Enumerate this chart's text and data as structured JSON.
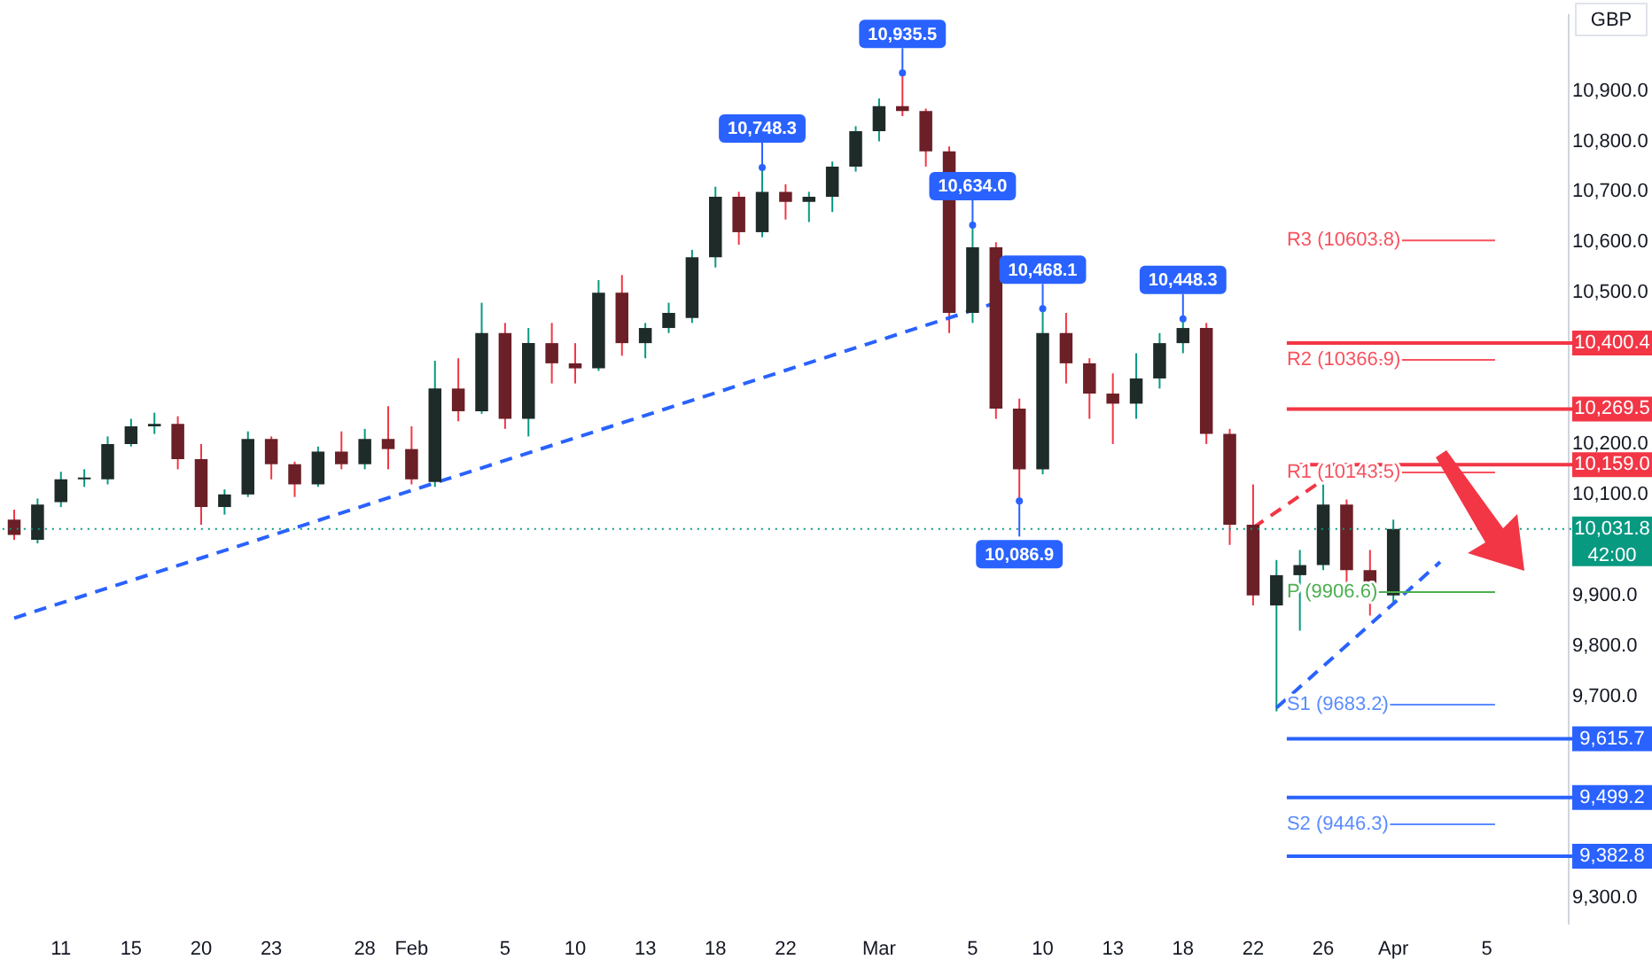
{
  "chart_data": {
    "type": "candlestick",
    "categories": [
      null,
      null,
      "11",
      null,
      null,
      "15",
      null,
      null,
      "20",
      null,
      null,
      "23",
      null,
      null,
      null,
      "28",
      null,
      "Feb",
      null,
      null,
      null,
      "5",
      null,
      null,
      "10",
      null,
      null,
      "13",
      null,
      null,
      "18",
      null,
      null,
      "22",
      null,
      null,
      null,
      "Mar",
      null,
      null,
      null,
      "5",
      null,
      null,
      "10",
      null,
      null,
      "13",
      null,
      null,
      "18",
      null,
      null,
      "22",
      null,
      null,
      "26",
      null,
      null,
      "Apr",
      null,
      null,
      null,
      "5",
      null,
      null,
      null
    ],
    "ohlc": [
      [
        10050,
        10070,
        10010,
        10020
      ],
      [
        10010,
        10092,
        10003,
        10080
      ],
      [
        10085,
        10145,
        10075,
        10130
      ],
      [
        10130,
        10150,
        10115,
        10130
      ],
      [
        10130,
        10215,
        10120,
        10200
      ],
      [
        10200,
        10250,
        10195,
        10235
      ],
      [
        10235,
        10262,
        10220,
        10240
      ],
      [
        10240,
        10255,
        10150,
        10170
      ],
      [
        10170,
        10200,
        10040,
        10075
      ],
      [
        10075,
        10110,
        10060,
        10100
      ],
      [
        10100,
        10225,
        10095,
        10210
      ],
      [
        10210,
        10215,
        10130,
        10160
      ],
      [
        10160,
        10165,
        10095,
        10120
      ],
      [
        10120,
        10195,
        10115,
        10185
      ],
      [
        10185,
        10225,
        10150,
        10160
      ],
      [
        10160,
        10230,
        10150,
        10210
      ],
      [
        10210,
        10275,
        10150,
        10190
      ],
      [
        10190,
        10235,
        10120,
        10130
      ],
      [
        10125,
        10365,
        10115,
        10310
      ],
      [
        10310,
        10370,
        10245,
        10265
      ],
      [
        10265,
        10480,
        10260,
        10420
      ],
      [
        10420,
        10440,
        10230,
        10250
      ],
      [
        10250,
        10430,
        10215,
        10400
      ],
      [
        10400,
        10440,
        10320,
        10360
      ],
      [
        10360,
        10400,
        10320,
        10350
      ],
      [
        10350,
        10525,
        10345,
        10500
      ],
      [
        10500,
        10535,
        10375,
        10400
      ],
      [
        10400,
        10440,
        10370,
        10430
      ],
      [
        10430,
        10480,
        10420,
        10460
      ],
      [
        10450,
        10585,
        10440,
        10570
      ],
      [
        10570,
        10710,
        10550,
        10690
      ],
      [
        10690,
        10700,
        10595,
        10620
      ],
      [
        10620,
        10748.3,
        10610,
        10700
      ],
      [
        10700,
        10715,
        10645,
        10680
      ],
      [
        10680,
        10700,
        10640,
        10690
      ],
      [
        10690,
        10760,
        10660,
        10750
      ],
      [
        10750,
        10830,
        10740,
        10820
      ],
      [
        10820,
        10885,
        10800,
        10870
      ],
      [
        10870,
        10935.5,
        10850,
        10860
      ],
      [
        10860,
        10865,
        10750,
        10780
      ],
      [
        10780,
        10790,
        10420,
        10460
      ],
      [
        10460,
        10634.0,
        10440,
        10590
      ],
      [
        10590,
        10600,
        10250,
        10270
      ],
      [
        10270,
        10290,
        10086.9,
        10150
      ],
      [
        10150,
        10468.1,
        10140,
        10420
      ],
      [
        10420,
        10460,
        10320,
        10360
      ],
      [
        10360,
        10370,
        10250,
        10300
      ],
      [
        10300,
        10340,
        10200,
        10280
      ],
      [
        10280,
        10380,
        10250,
        10330
      ],
      [
        10330,
        10420,
        10310,
        10400
      ],
      [
        10400,
        10448.3,
        10380,
        10430
      ],
      [
        10430,
        10440,
        10200,
        10220
      ],
      [
        10220,
        10230,
        10000,
        10040
      ],
      [
        10040,
        10120,
        9880,
        9900
      ],
      [
        9880,
        9970,
        9670,
        9940
      ],
      [
        9940,
        9990,
        9830,
        9960
      ],
      [
        9960,
        10120,
        9950,
        10080
      ],
      [
        10080,
        10090,
        9920,
        9950
      ],
      [
        9950,
        9990,
        9860,
        9900
      ],
      [
        9900,
        10050,
        9885,
        10031.8
      ],
      null,
      null,
      null,
      null,
      null,
      null,
      null
    ],
    "value_labels": [
      null,
      null,
      null,
      null,
      null,
      null,
      null,
      null,
      null,
      null,
      null,
      null,
      null,
      null,
      null,
      null,
      null,
      null,
      null,
      null,
      null,
      null,
      null,
      null,
      null,
      null,
      null,
      null,
      null,
      null,
      null,
      null,
      "10,748.3",
      null,
      null,
      null,
      null,
      null,
      "10,935.5",
      null,
      null,
      "10,634.0",
      null,
      "10,086.9",
      "10,468.1",
      null,
      null,
      null,
      null,
      null,
      "10,448.3",
      null,
      null,
      null,
      null,
      null,
      null,
      null,
      null,
      null,
      null,
      null,
      null,
      null,
      null,
      null,
      null
    ],
    "series": [
      {
        "type": "line",
        "color": "#2962ff",
        "line_style": "dashed",
        "values": [
          9855,
          null,
          null,
          null,
          null,
          null,
          null,
          null,
          null,
          null,
          null,
          null,
          null,
          null,
          null,
          null,
          null,
          null,
          null,
          null,
          null,
          null,
          null,
          null,
          null,
          null,
          null,
          null,
          null,
          null,
          null,
          null,
          null,
          null,
          null,
          null,
          null,
          null,
          null,
          null,
          null,
          null,
          10480,
          null,
          null,
          null,
          null,
          null,
          null,
          null,
          null,
          null,
          null,
          null,
          null,
          null,
          null,
          null,
          null,
          null,
          null,
          null,
          null,
          null,
          null,
          null,
          null
        ]
      },
      {
        "type": "line",
        "color": "#2962ff",
        "line_style": "dashed",
        "values": [
          null,
          null,
          null,
          null,
          null,
          null,
          null,
          null,
          null,
          null,
          null,
          null,
          null,
          null,
          null,
          null,
          null,
          null,
          null,
          null,
          null,
          null,
          null,
          null,
          null,
          null,
          null,
          null,
          null,
          null,
          null,
          null,
          null,
          null,
          null,
          null,
          null,
          null,
          null,
          null,
          null,
          null,
          null,
          null,
          null,
          null,
          null,
          null,
          null,
          null,
          null,
          null,
          null,
          null,
          9677,
          null,
          null,
          null,
          null,
          null,
          null,
          9966,
          null,
          null,
          null,
          null,
          null
        ]
      },
      {
        "type": "line",
        "color": "#f23645",
        "line_style": "dashed",
        "values": [
          null,
          null,
          null,
          null,
          null,
          null,
          null,
          null,
          null,
          null,
          null,
          null,
          null,
          null,
          null,
          null,
          null,
          null,
          null,
          null,
          null,
          null,
          null,
          null,
          null,
          null,
          null,
          null,
          null,
          null,
          null,
          null,
          null,
          null,
          null,
          null,
          null,
          null,
          null,
          null,
          null,
          null,
          null,
          null,
          null,
          null,
          null,
          null,
          null,
          null,
          null,
          null,
          null,
          10034,
          null,
          null,
          10129,
          null,
          null,
          null,
          null,
          null,
          null,
          null,
          null,
          null,
          null
        ]
      }
    ],
    "ylim": [
      9250,
      11050
    ],
    "yticks": [
      {
        "value": 9300,
        "label": "9,300.0"
      },
      {
        "value": 9700,
        "label": "9,700.0"
      },
      {
        "value": 9800,
        "label": "9,800.0"
      },
      {
        "value": 9900,
        "label": "9,900.0"
      },
      {
        "value": 10100,
        "label": "10,100.0"
      },
      {
        "value": 10200,
        "label": "10,200.0"
      },
      {
        "value": 10500,
        "label": "10,500.0"
      },
      {
        "value": 10600,
        "label": "10,600.0"
      },
      {
        "value": 10700,
        "label": "10,700.0"
      },
      {
        "value": 10800,
        "label": "10,800.0"
      },
      {
        "value": 10900,
        "label": "10,900.0"
      }
    ],
    "ref_lines": [
      {
        "axis": "y",
        "value": 10031.8,
        "label": "10,031.8\n42:00",
        "color": "#089981",
        "line_style": "dotted"
      },
      {
        "axis": "y",
        "value": 10400.4,
        "label": "10,400.4",
        "color": "#f23645",
        "line_style": "solid"
      },
      {
        "axis": "y",
        "value": 10269.5,
        "label": "10,269.5",
        "color": "#f23645",
        "line_style": "solid"
      },
      {
        "axis": "y",
        "value": 10159.0,
        "label": "10,159.0",
        "color": "#f23645",
        "line_style": "solid"
      },
      {
        "axis": "y",
        "value": 9615.7,
        "label": "9,615.7",
        "color": "#2962ff",
        "line_style": "solid"
      },
      {
        "axis": "y",
        "value": 9499.2,
        "label": "9,499.2",
        "color": "#2962ff",
        "line_style": "solid"
      },
      {
        "axis": "y",
        "value": 9382.8,
        "label": "9,382.8",
        "color": "#2962ff",
        "line_style": "solid"
      },
      {
        "axis": "y",
        "value": 10603.8,
        "label": "R3 (10603.8)",
        "color": "#f7525f"
      },
      {
        "axis": "y",
        "value": 10366.9,
        "label": "R2 (10366.9)",
        "color": "#f7525f"
      },
      {
        "axis": "y",
        "value": 10143.5,
        "label": "R1 (10143.5)",
        "color": "#f7525f"
      },
      {
        "axis": "y",
        "value": 9906.6,
        "label": "P (9906.6)",
        "color": "#4caf50"
      },
      {
        "axis": "y",
        "value": 9683.2,
        "label": "S1 (9683.2)",
        "color": "#5b8cff"
      },
      {
        "axis": "y",
        "value": 9446.3,
        "label": "S2 (9446.3)",
        "color": "#5b8cff"
      }
    ],
    "annotations": [
      "GBP"
    ]
  }
}
